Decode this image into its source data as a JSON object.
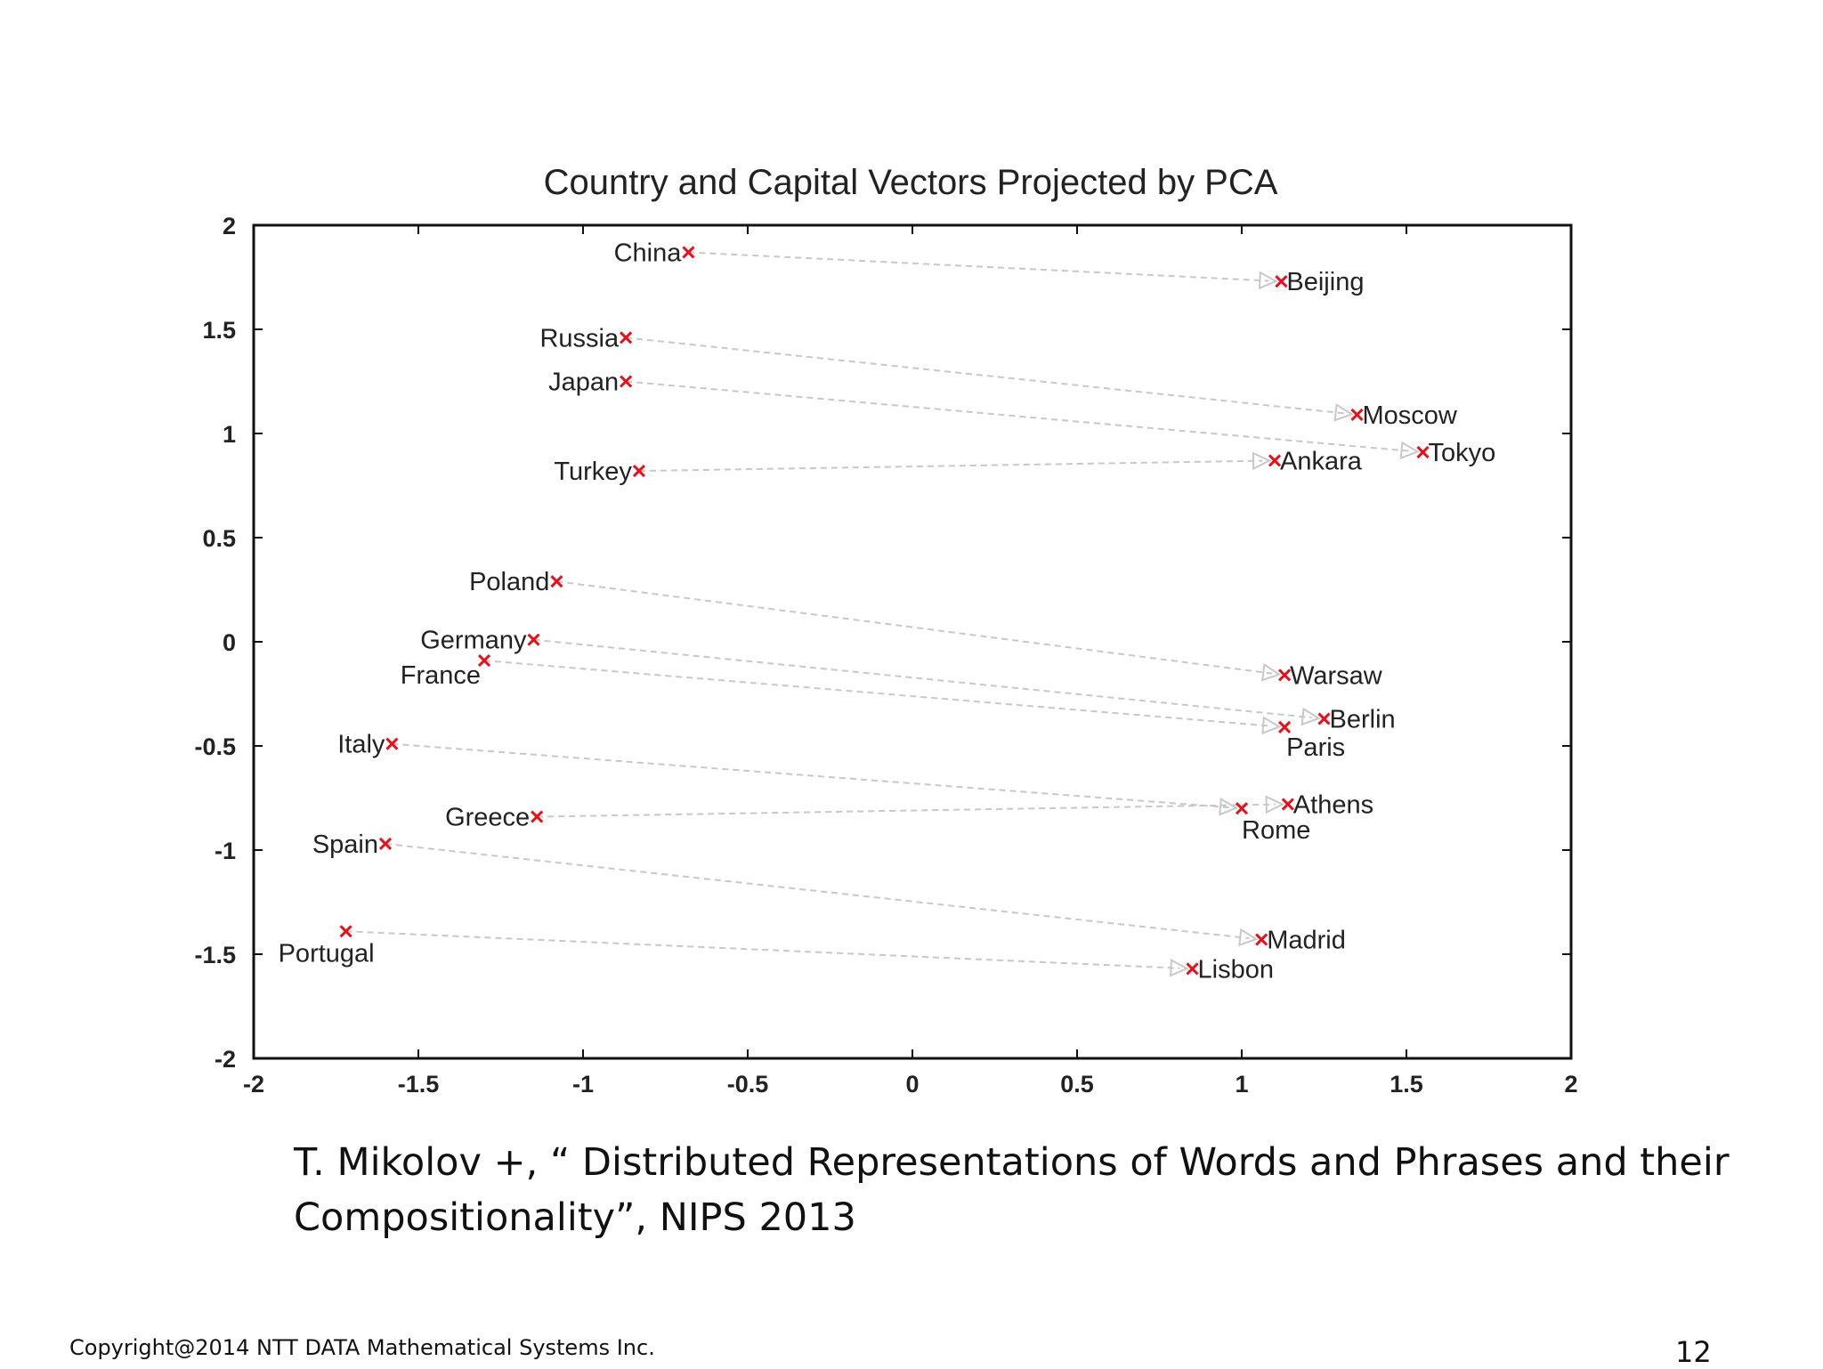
{
  "chart_data": {
    "type": "scatter",
    "title": "Country and Capital Vectors Projected by PCA",
    "xlabel": "",
    "ylabel": "",
    "xlim": [
      -2,
      2
    ],
    "ylim": [
      -2,
      2
    ],
    "xticks": [
      -2,
      -1.5,
      -1,
      -0.5,
      0,
      0.5,
      1,
      1.5,
      2
    ],
    "yticks": [
      -2,
      -1.5,
      -1,
      -0.5,
      0,
      0.5,
      1,
      1.5,
      2
    ],
    "grid": false,
    "colors": {
      "marker": "#e8101a",
      "arrow": "#c8c8c8",
      "frame": "#111111"
    },
    "pairs": [
      {
        "country": "China",
        "cx": -0.68,
        "cy": 1.87,
        "capital": "Beijing",
        "kx": 1.12,
        "ky": 1.73
      },
      {
        "country": "Russia",
        "cx": -0.87,
        "cy": 1.46,
        "capital": "Moscow",
        "kx": 1.35,
        "ky": 1.09
      },
      {
        "country": "Japan",
        "cx": -0.87,
        "cy": 1.25,
        "capital": "Tokyo",
        "kx": 1.55,
        "ky": 0.91
      },
      {
        "country": "Turkey",
        "cx": -0.83,
        "cy": 0.82,
        "capital": "Ankara",
        "kx": 1.1,
        "ky": 0.87
      },
      {
        "country": "Poland",
        "cx": -1.08,
        "cy": 0.29,
        "capital": "Warsaw",
        "kx": 1.13,
        "ky": -0.16
      },
      {
        "country": "Germany",
        "cx": -1.15,
        "cy": 0.01,
        "capital": "Berlin",
        "kx": 1.25,
        "ky": -0.37
      },
      {
        "country": "France",
        "cx": -1.3,
        "cy": -0.09,
        "capital": "Paris",
        "kx": 1.13,
        "ky": -0.41
      },
      {
        "country": "Italy",
        "cx": -1.58,
        "cy": -0.49,
        "capital": "Rome",
        "kx": 1.0,
        "ky": -0.8
      },
      {
        "country": "Greece",
        "cx": -1.14,
        "cy": -0.84,
        "capital": "Athens",
        "kx": 1.14,
        "ky": -0.78
      },
      {
        "country": "Spain",
        "cx": -1.6,
        "cy": -0.97,
        "capital": "Madrid",
        "kx": 1.06,
        "ky": -1.43
      },
      {
        "country": "Portugal",
        "cx": -1.72,
        "cy": -1.39,
        "capital": "Lisbon",
        "kx": 0.85,
        "ky": -1.57
      }
    ]
  },
  "citation_line1": "T. Mikolov +, “ Distributed Representations of Words and Phrases and their",
  "citation_line2": "Compositionality”, NIPS 2013",
  "copyright": "Copyright@2014 NTT DATA Mathematical Systems Inc.",
  "page_number": "12"
}
